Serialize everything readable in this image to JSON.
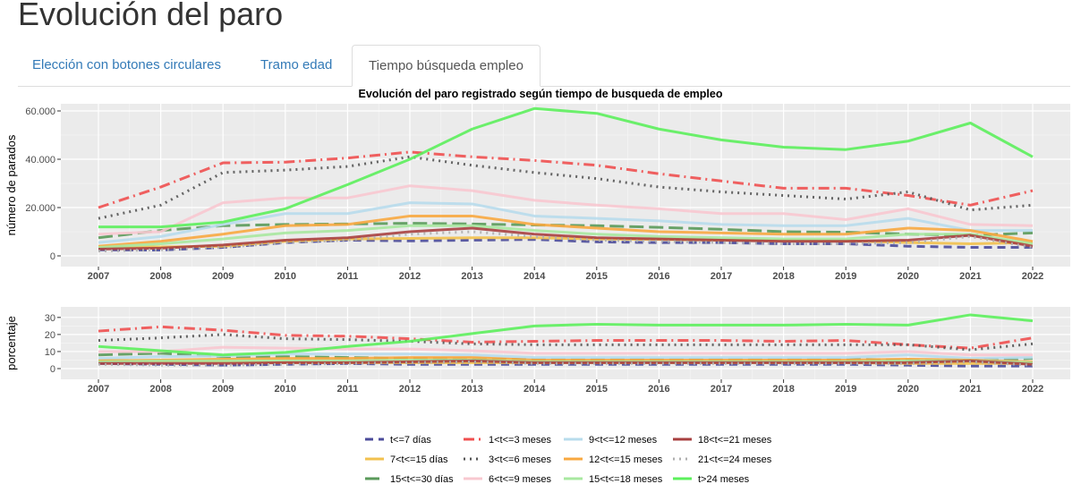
{
  "page": {
    "title": "Evolución del paro"
  },
  "tabs": [
    {
      "label": "Elección con botones circulares",
      "active": false
    },
    {
      "label": "Tramo edad",
      "active": false
    },
    {
      "label": "Tiempo búsqueda empleo",
      "active": true
    }
  ],
  "chart_data": [
    {
      "type": "line",
      "title": "Evolución del paro registrado según tiempo de busqueda de empleo",
      "xlabel": "",
      "ylabel": "número de parados",
      "x": [
        2007,
        2008,
        2009,
        2010,
        2011,
        2012,
        2013,
        2014,
        2015,
        2016,
        2017,
        2018,
        2019,
        2020,
        2021,
        2022
      ],
      "ylim": [
        0,
        60000
      ],
      "yticks": [
        0,
        20000,
        40000,
        60000
      ],
      "ytick_labels": [
        "0",
        "20.000",
        "40.000",
        "60.000"
      ],
      "grid": true,
      "series": [
        {
          "name": "t<=7 días",
          "color": "#4b4b9a",
          "dash": "dashed",
          "values": [
            2500,
            2400,
            3500,
            5500,
            6500,
            6200,
            6500,
            6800,
            5800,
            5500,
            5500,
            5000,
            5000,
            4000,
            3500,
            3500
          ]
        },
        {
          "name": "7<t<=15 días",
          "color": "#f2c14e",
          "dash": "solid",
          "values": [
            3800,
            3700,
            4000,
            6000,
            7000,
            7200,
            7500,
            7500,
            7000,
            6800,
            6500,
            6500,
            6200,
            5500,
            5000,
            5500
          ]
        },
        {
          "name": "15<t<=30 días",
          "color": "#5a9a5a",
          "dash": "longdash",
          "values": [
            7500,
            10500,
            12500,
            13000,
            13200,
            13500,
            13200,
            12800,
            12500,
            11800,
            11000,
            10000,
            9800,
            9000,
            8500,
            9500
          ]
        },
        {
          "name": "1<t<=3 meses",
          "color": "#f05050",
          "dash": "dotdash",
          "values": [
            20000,
            28500,
            38500,
            38800,
            40500,
            43000,
            41000,
            39500,
            37500,
            34000,
            31000,
            28000,
            28000,
            25000,
            21000,
            27000
          ]
        },
        {
          "name": "3<t<=6 meses",
          "color": "#555555",
          "dash": "dotted",
          "values": [
            15500,
            21000,
            34500,
            35500,
            37000,
            41000,
            37500,
            34500,
            32000,
            28500,
            26500,
            25000,
            23500,
            26500,
            19000,
            21000
          ]
        },
        {
          "name": "6<t<=9 meses",
          "color": "#f8c8d0",
          "dash": "solid",
          "values": [
            9000,
            10000,
            22000,
            24000,
            24000,
            29000,
            27000,
            23000,
            21000,
            19500,
            17500,
            17500,
            15000,
            19500,
            13000,
            12500
          ]
        },
        {
          "name": "9<t<=12 meses",
          "color": "#b8dcec",
          "dash": "solid",
          "values": [
            5500,
            8000,
            13000,
            17500,
            17500,
            22000,
            21500,
            16500,
            15500,
            14500,
            13000,
            12500,
            12500,
            15500,
            10500,
            10500
          ]
        },
        {
          "name": "12<t<=15 meses",
          "color": "#f8a840",
          "dash": "solid",
          "values": [
            4000,
            6000,
            9000,
            12500,
            13000,
            16500,
            16500,
            13000,
            11500,
            10000,
            9500,
            9000,
            9000,
            11500,
            10500,
            6000
          ]
        },
        {
          "name": "15<t<=18 meses",
          "color": "#a8e8a0",
          "dash": "solid",
          "values": [
            3500,
            5000,
            7000,
            9500,
            10500,
            12500,
            12500,
            10500,
            9000,
            8000,
            7500,
            7000,
            7000,
            9000,
            9000,
            5000
          ]
        },
        {
          "name": "18<t<=21 meses",
          "color": "#a84040",
          "dash": "solid",
          "values": [
            2800,
            3200,
            4500,
            6500,
            7500,
            10000,
            11500,
            9000,
            7500,
            7000,
            6500,
            6000,
            6000,
            6500,
            8500,
            4000
          ]
        },
        {
          "name": "21<t<=24 meses",
          "color": "#b0b0b0",
          "dash": "dotted",
          "values": [
            2000,
            2500,
            3500,
            5500,
            6500,
            9000,
            10000,
            8000,
            6500,
            6000,
            5500,
            5000,
            5000,
            5500,
            8000,
            3500
          ]
        },
        {
          "name": "t>24 meses",
          "color": "#5cf05c",
          "dash": "solid",
          "values": [
            12000,
            12000,
            14000,
            19500,
            29500,
            40000,
            52500,
            61000,
            59000,
            52500,
            48000,
            45000,
            44000,
            47500,
            55000,
            41000
          ]
        }
      ]
    },
    {
      "type": "line",
      "title": "",
      "xlabel": "",
      "ylabel": "porcentaje",
      "x": [
        2007,
        2008,
        2009,
        2010,
        2011,
        2012,
        2013,
        2014,
        2015,
        2016,
        2017,
        2018,
        2019,
        2020,
        2021,
        2022
      ],
      "ylim": [
        0,
        32
      ],
      "yticks": [
        0,
        10,
        20,
        30
      ],
      "ytick_labels": [
        "0",
        "10",
        "20",
        "30"
      ],
      "grid": true,
      "series": [
        {
          "name": "t<=7 días",
          "color": "#4b4b9a",
          "dash": "dashed",
          "values": [
            3,
            2.5,
            2,
            2.5,
            3,
            2.5,
            2.5,
            2.5,
            2.5,
            2.5,
            2.5,
            2.5,
            2.5,
            2,
            1.5,
            1.5
          ]
        },
        {
          "name": "7<t<=15 días",
          "color": "#f2c14e",
          "dash": "solid",
          "values": [
            5,
            4.5,
            4,
            3.5,
            3.5,
            3.5,
            3.5,
            3.5,
            3.5,
            3.5,
            3.5,
            3.5,
            3.5,
            3,
            3,
            3
          ]
        },
        {
          "name": "15<t<=30 días",
          "color": "#5a9a5a",
          "dash": "longdash",
          "values": [
            8,
            9,
            7,
            7,
            6.5,
            6,
            5.5,
            5.5,
            5.5,
            5.5,
            5.5,
            5.5,
            5.5,
            5,
            5,
            6
          ]
        },
        {
          "name": "1<t<=3 meses",
          "color": "#f05050",
          "dash": "dotdash",
          "values": [
            22,
            24.5,
            22.5,
            19.5,
            19,
            17.5,
            15.5,
            16,
            16.5,
            16.5,
            16.5,
            16,
            16.5,
            14,
            12,
            18
          ]
        },
        {
          "name": "3<t<=6 meses",
          "color": "#555555",
          "dash": "dotted",
          "values": [
            16.5,
            18,
            20,
            17.5,
            17,
            16,
            14.5,
            14,
            14,
            14,
            14,
            14,
            14,
            14,
            11,
            14.5
          ]
        },
        {
          "name": "6<t<=9 meses",
          "color": "#f8c8d0",
          "dash": "solid",
          "values": [
            10,
            10,
            12.5,
            12,
            11.5,
            11.5,
            10.5,
            9,
            9,
            9,
            9,
            9,
            9,
            10,
            8,
            8
          ]
        },
        {
          "name": "9<t<=12 meses",
          "color": "#b8dcec",
          "dash": "solid",
          "values": [
            6,
            7,
            7.5,
            8.5,
            8.5,
            8.5,
            8,
            6.5,
            6.5,
            6.5,
            6.5,
            6.5,
            6.5,
            8,
            6,
            6.5
          ]
        },
        {
          "name": "12<t<=15 meses",
          "color": "#f8a840",
          "dash": "solid",
          "values": [
            4.5,
            5,
            5.5,
            6,
            6,
            6.5,
            6.5,
            5,
            5,
            5,
            5,
            5,
            5,
            5.5,
            5,
            4
          ]
        },
        {
          "name": "15<t<=18 meses",
          "color": "#a8e8a0",
          "dash": "solid",
          "values": [
            4,
            4.5,
            4.5,
            4.5,
            4.5,
            5,
            5,
            4,
            4,
            4,
            4,
            4,
            4,
            4.5,
            4.5,
            3.5
          ]
        },
        {
          "name": "18<t<=21 meses",
          "color": "#a84040",
          "dash": "solid",
          "values": [
            3,
            3,
            3,
            3.5,
            3.5,
            4,
            4.5,
            3.5,
            3.5,
            3.5,
            3.5,
            3.5,
            3.5,
            3.5,
            4.5,
            2.5
          ]
        },
        {
          "name": "21<t<=24 meses",
          "color": "#b0b0b0",
          "dash": "dotted",
          "values": [
            2.5,
            2,
            2,
            2.5,
            3,
            3.5,
            4,
            3,
            3,
            3,
            3,
            3,
            3,
            3,
            4,
            2
          ]
        },
        {
          "name": "t>24 meses",
          "color": "#5cf05c",
          "dash": "solid",
          "values": [
            13,
            10.5,
            8,
            9.5,
            13,
            16,
            20.5,
            25,
            26,
            25.5,
            25.5,
            25.5,
            26,
            25.5,
            31.5,
            28
          ]
        }
      ]
    }
  ]
}
